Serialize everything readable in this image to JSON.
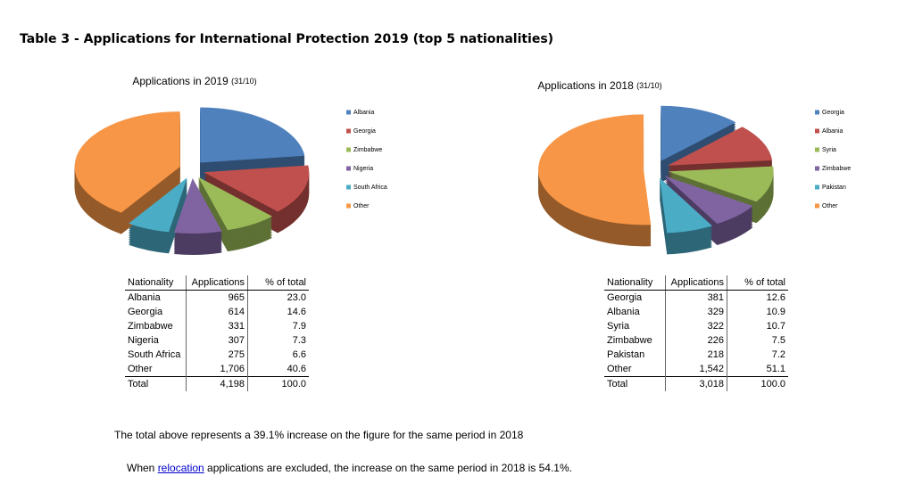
{
  "title": "Table 3 - Applications for International Protection 2019 (top 5 nationalities)",
  "chart_data": [
    {
      "type": "pie",
      "title": "Applications in 2019",
      "date_note": "(31/10)",
      "categories": [
        "Albania",
        "Georgia",
        "Zimbabwe",
        "Nigeria",
        "South Africa",
        "Other"
      ],
      "values": [
        23.0,
        14.6,
        7.9,
        7.3,
        6.6,
        40.6
      ],
      "colors": [
        "#4f81bd",
        "#c0504d",
        "#9bbb59",
        "#8064a2",
        "#4bacc6",
        "#f79646"
      ]
    },
    {
      "type": "pie",
      "title": "Applications in 2018",
      "date_note": "(31/10)",
      "categories": [
        "Georgia",
        "Albania",
        "Syria",
        "Zimbabwe",
        "Pakistan",
        "Other"
      ],
      "values": [
        12.6,
        10.9,
        10.7,
        7.5,
        7.2,
        51.1
      ],
      "colors": [
        "#4f81bd",
        "#c0504d",
        "#9bbb59",
        "#8064a2",
        "#4bacc6",
        "#f79646"
      ]
    }
  ],
  "tables": [
    {
      "header": [
        "Nationality",
        "Applications",
        "% of total"
      ],
      "rows": [
        [
          "Albania",
          "965",
          "23.0"
        ],
        [
          "Georgia",
          "614",
          "14.6"
        ],
        [
          "Zimbabwe",
          "331",
          "7.9"
        ],
        [
          "Nigeria",
          "307",
          "7.3"
        ],
        [
          "South Africa",
          "275",
          "6.6"
        ],
        [
          "Other",
          "1,706",
          "40.6"
        ]
      ],
      "total": [
        "Total",
        "4,198",
        "100.0"
      ]
    },
    {
      "header": [
        "Nationality",
        "Applications",
        "% of total"
      ],
      "rows": [
        [
          "Georgia",
          "381",
          "12.6"
        ],
        [
          "Albania",
          "329",
          "10.9"
        ],
        [
          "Syria",
          "322",
          "10.7"
        ],
        [
          "Zimbabwe",
          "226",
          "7.5"
        ],
        [
          "Pakistan",
          "218",
          "7.2"
        ],
        [
          "Other",
          "1,542",
          "51.1"
        ]
      ],
      "total": [
        "Total",
        "3,018",
        "100.0"
      ]
    }
  ],
  "notes": {
    "line1": "The total above represents a 39.1% increase on the figure for the same period in 2018",
    "line2_before": "When ",
    "line2_link": "relocation",
    "line2_after": " applications are excluded, the increase on the same period in 2018 is 54.1%."
  }
}
